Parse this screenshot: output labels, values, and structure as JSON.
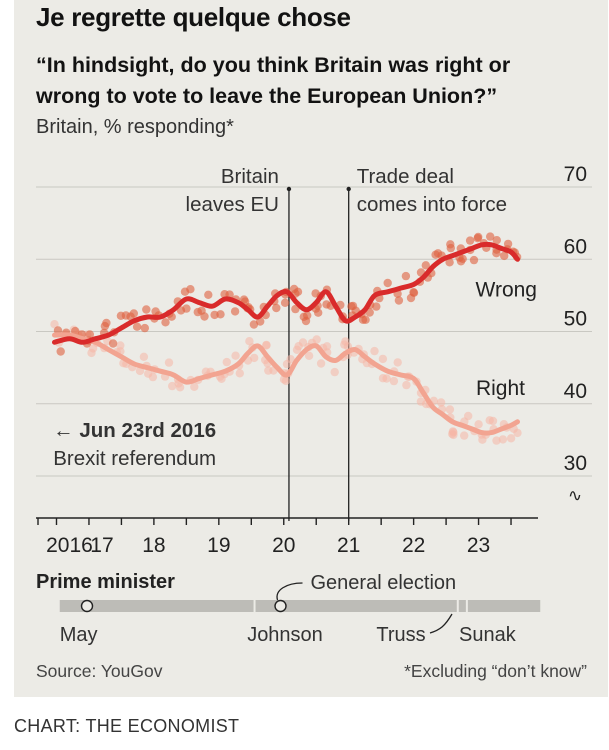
{
  "title": "Je regrette quelque chose",
  "subtitle": "“In hindsight, do you think Britain was right or wrong to vote to leave the European Union?”",
  "unit_label": "Britain, % responding*",
  "credit": "CHART: THE ECONOMIST",
  "colors": {
    "wrong": "#d92b2b",
    "wrong_dots": "#e0603f",
    "right": "#f2a491",
    "right_dots": "#f6b6a5",
    "panel": "#ecebe6",
    "pm_bar": "#bdbcb7"
  },
  "chart_data": {
    "type": "line",
    "title": "Je regrette quelque chose",
    "ylabel": "Britain, % responding*",
    "ylim": [
      30,
      70
    ],
    "yticks": [
      30,
      40,
      50,
      60,
      70
    ],
    "ytick_labels": [
      "30",
      "40",
      "50",
      "60",
      "70"
    ],
    "axis_break_symbol": "∿",
    "xlim": [
      2016.4,
      2023.9
    ],
    "xticks": [
      2016.5,
      2017,
      2017.5,
      2018,
      2018.5,
      2019,
      2019.5,
      2020,
      2020.5,
      2021,
      2021.5,
      2022,
      2022.5,
      2023,
      2023.5
    ],
    "xlabels": [
      {
        "label": "2016",
        "x": 2016.7
      },
      {
        "label": "17",
        "x": 2017.2
      },
      {
        "label": "18",
        "x": 2018.0
      },
      {
        "label": "19",
        "x": 2019.0
      },
      {
        "label": "20",
        "x": 2020.0
      },
      {
        "label": "21",
        "x": 2021.0
      },
      {
        "label": "22",
        "x": 2022.0
      },
      {
        "label": "23",
        "x": 2023.0
      }
    ],
    "series": [
      {
        "name": "Wrong",
        "x": [
          2016.47,
          2016.7,
          2016.9,
          2017.1,
          2017.3,
          2017.5,
          2017.7,
          2017.9,
          2018.1,
          2018.3,
          2018.5,
          2018.7,
          2018.9,
          2019.1,
          2019.3,
          2019.45,
          2019.6,
          2019.75,
          2019.9,
          2020.05,
          2020.2,
          2020.35,
          2020.5,
          2020.65,
          2020.8,
          2020.95,
          2021.1,
          2021.25,
          2021.4,
          2021.6,
          2021.8,
          2022.0,
          2022.15,
          2022.3,
          2022.45,
          2022.6,
          2022.75,
          2022.9,
          2023.05,
          2023.2,
          2023.35,
          2023.5,
          2023.6
        ],
        "values": [
          48.5,
          49.0,
          48.5,
          49.0,
          49.5,
          50.5,
          51.5,
          52.0,
          52.0,
          53.0,
          54.5,
          54.0,
          53.5,
          54.5,
          54.0,
          53.0,
          52.0,
          53.5,
          55.0,
          55.5,
          54.0,
          53.0,
          54.0,
          55.5,
          53.5,
          51.5,
          52.0,
          53.0,
          55.0,
          55.5,
          56.0,
          56.5,
          57.5,
          59.0,
          60.0,
          60.5,
          61.0,
          61.5,
          62.0,
          62.0,
          61.5,
          61.0,
          60.0
        ]
      },
      {
        "name": "Right",
        "x": [
          2016.47,
          2016.7,
          2016.9,
          2017.1,
          2017.3,
          2017.5,
          2017.7,
          2017.9,
          2018.1,
          2018.3,
          2018.5,
          2018.7,
          2018.9,
          2019.1,
          2019.3,
          2019.45,
          2019.6,
          2019.75,
          2019.9,
          2020.05,
          2020.2,
          2020.35,
          2020.5,
          2020.65,
          2020.8,
          2020.95,
          2021.1,
          2021.25,
          2021.4,
          2021.6,
          2021.8,
          2022.0,
          2022.15,
          2022.3,
          2022.45,
          2022.6,
          2022.75,
          2022.9,
          2023.05,
          2023.2,
          2023.35,
          2023.5,
          2023.6
        ],
        "values": [
          49.5,
          49.5,
          49.0,
          48.5,
          47.5,
          46.5,
          45.5,
          45.0,
          44.5,
          44.0,
          43.0,
          43.5,
          44.0,
          44.5,
          45.5,
          47.0,
          48.0,
          46.5,
          45.0,
          44.0,
          46.0,
          47.5,
          48.0,
          46.5,
          46.0,
          47.0,
          47.5,
          46.5,
          45.5,
          44.5,
          44.0,
          43.5,
          41.5,
          39.5,
          38.5,
          37.5,
          37.0,
          36.5,
          36.0,
          36.0,
          36.5,
          37.0,
          37.5
        ]
      }
    ],
    "series_labels": [
      {
        "text": "Wrong",
        "series": "Wrong"
      },
      {
        "text": "Right",
        "series": "Right"
      }
    ],
    "annotations": [
      {
        "id": "brexit-leave",
        "x": 2020.08,
        "lines": [
          "Britain",
          "leaves EU"
        ]
      },
      {
        "id": "trade-deal",
        "x": 2021.0,
        "lines": [
          "Trade deal",
          "comes into force"
        ]
      },
      {
        "id": "referendum",
        "x": 2016.48,
        "lines": [
          "← Jun 23rd 2016",
          "Brexit referendum"
        ]
      }
    ],
    "prime_minister": {
      "heading": "Prime minister",
      "segments": [
        {
          "name": "May",
          "start": 2016.55,
          "end": 2019.55
        },
        {
          "name": "Johnson",
          "start": 2019.55,
          "end": 2022.68
        },
        {
          "name": "Truss",
          "start": 2022.68,
          "end": 2022.82
        },
        {
          "name": "Sunak",
          "start": 2022.82,
          "end": 2023.95
        }
      ],
      "event_label": "General election",
      "events": [
        {
          "name": "General election",
          "x": 2019.95
        }
      ],
      "marker_x": 2016.97
    },
    "source": "Source: YouGov",
    "footnote": "*Excluding “don’t know”"
  }
}
